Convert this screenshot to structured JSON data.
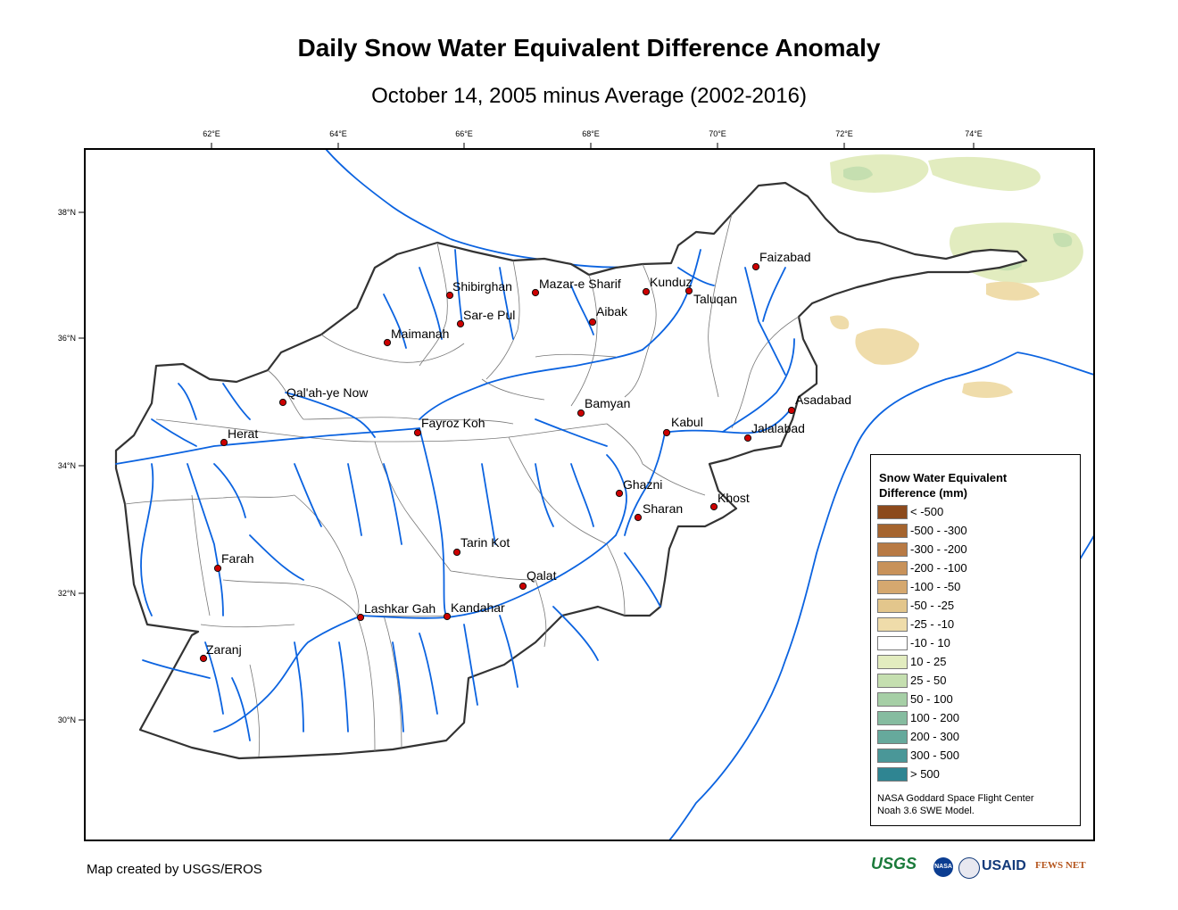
{
  "title": "Daily Snow Water Equivalent Difference Anomaly",
  "subtitle": "October 14, 2005 minus Average (2002-2016)",
  "credit": "Map created by USGS/EROS",
  "graticule": {
    "lon_labels": [
      "62°E",
      "64°E",
      "66°E",
      "68°E",
      "70°E",
      "72°E",
      "74°E"
    ],
    "lat_labels": [
      "38°N",
      "36°N",
      "34°N",
      "32°N",
      "30°N"
    ]
  },
  "cities": [
    {
      "name": "Faizabad"
    },
    {
      "name": "Shibirghan"
    },
    {
      "name": "Mazar-e Sharif"
    },
    {
      "name": "Kunduz"
    },
    {
      "name": "Taluqan"
    },
    {
      "name": "Sar-e Pul"
    },
    {
      "name": "Aibak"
    },
    {
      "name": "Maimanah"
    },
    {
      "name": "Qal'ah-ye Now"
    },
    {
      "name": "Bamyan"
    },
    {
      "name": "Asadabad"
    },
    {
      "name": "Kabul"
    },
    {
      "name": "Jalalabad"
    },
    {
      "name": "Fayroz Koh"
    },
    {
      "name": "Herat"
    },
    {
      "name": "Ghazni"
    },
    {
      "name": "Khost"
    },
    {
      "name": "Sharan"
    },
    {
      "name": "Tarin Kot"
    },
    {
      "name": "Farah"
    },
    {
      "name": "Qalat"
    },
    {
      "name": "Lashkar Gah"
    },
    {
      "name": "Kandahar"
    },
    {
      "name": "Zaranj"
    }
  ],
  "legend": {
    "title": "Snow Water Equivalent Difference (mm)",
    "items": [
      {
        "label": "< -500",
        "color": "#8c4a1c"
      },
      {
        "label": "-500 - -300",
        "color": "#a5642e"
      },
      {
        "label": "-300 - -200",
        "color": "#b87a44"
      },
      {
        "label": "-200 - -100",
        "color": "#c8925a"
      },
      {
        "label": "-100 - -50",
        "color": "#d5a86f"
      },
      {
        "label": "-50 - -25",
        "color": "#e3c68c"
      },
      {
        "label": "-25 - -10",
        "color": "#efdcaa"
      },
      {
        "label": "-10 - 10",
        "color": "#ffffff"
      },
      {
        "label": "10 - 25",
        "color": "#e2ecbf"
      },
      {
        "label": "25 - 50",
        "color": "#c5dfb0"
      },
      {
        "label": "50 - 100",
        "color": "#a6cfa6"
      },
      {
        "label": "100 - 200",
        "color": "#86bca0"
      },
      {
        "label": "200 - 300",
        "color": "#66a99c"
      },
      {
        "label": "300 - 500",
        "color": "#4a9798"
      },
      {
        "label": "> 500",
        "color": "#2f8592"
      }
    ],
    "source_line1": "NASA Goddard Space Flight Center",
    "source_line2": "Noah 3.6 SWE Model."
  },
  "logos": [
    {
      "name": "usgs-logo",
      "text": "USGS"
    },
    {
      "name": "nasa-logo",
      "text": "NASA"
    },
    {
      "name": "usaid-logo",
      "text": "USAID"
    },
    {
      "name": "fewsnet-logo",
      "text": "FEWS NET"
    }
  ],
  "colors": {
    "river": "#0b63e0",
    "border": "#333333",
    "city_dot": "#cc0000"
  }
}
